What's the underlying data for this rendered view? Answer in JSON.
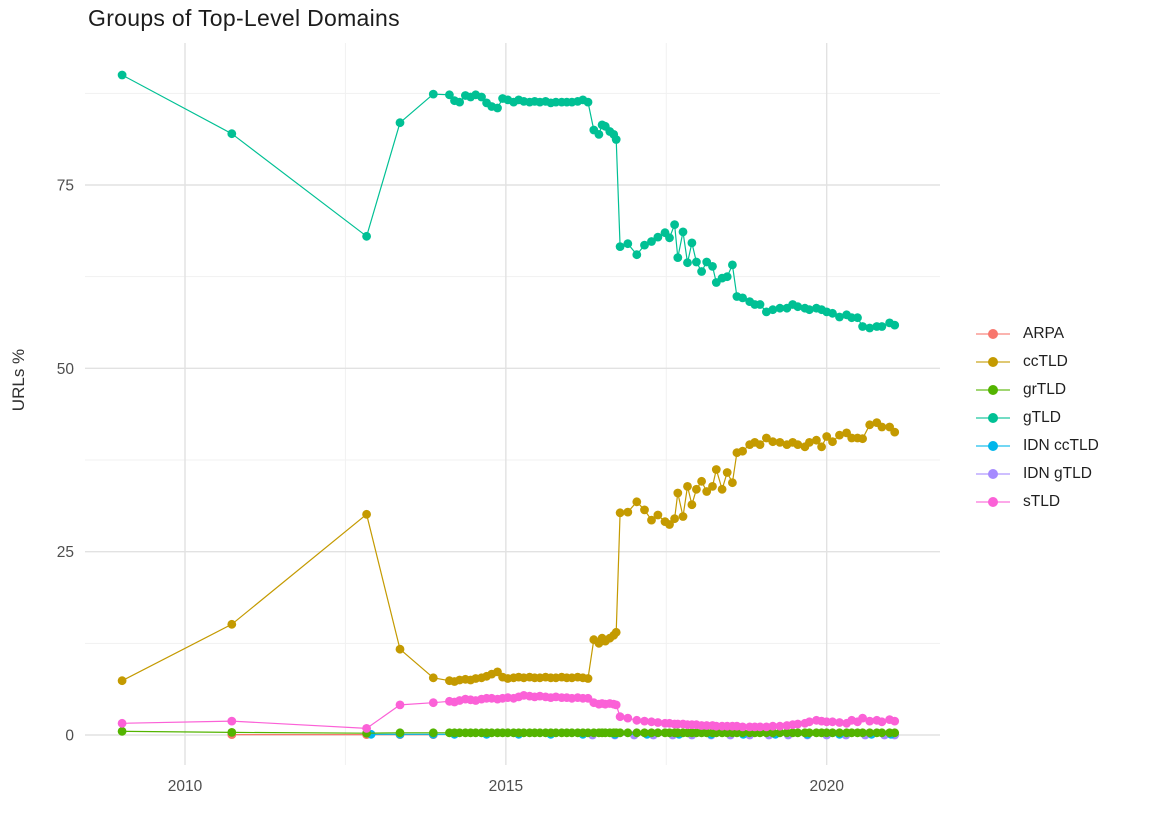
{
  "title": "Groups of Top-Level Domains",
  "axes": {
    "y_title": "URLs %",
    "x_ticks": [
      2010,
      2015,
      2020
    ],
    "y_ticks": [
      0,
      25,
      50,
      75
    ],
    "x_minor": [
      2012.5,
      2017.5
    ],
    "y_minor": [
      12.5,
      37.5,
      62.5,
      87.5
    ]
  },
  "chart_data": {
    "type": "scatter",
    "title": "Groups of Top-Level Domains",
    "xlabel": "",
    "ylabel": "URLs %",
    "xlim": [
      2008.4,
      2021.8
    ],
    "ylim": [
      -4,
      94
    ],
    "grid": "on",
    "legend_position": "right",
    "x_main": [
      2009.02,
      2010.73,
      2012.83,
      2013.35,
      2013.87,
      2014.12,
      2014.2,
      2014.28,
      2014.37,
      2014.45,
      2014.53,
      2014.62,
      2014.7,
      2014.78,
      2014.87,
      2014.95,
      2015.03,
      2015.12,
      2015.2,
      2015.28,
      2015.37,
      2015.45,
      2015.53,
      2015.62,
      2015.7,
      2015.78,
      2015.87,
      2015.95,
      2016.03,
      2016.12,
      2016.2,
      2016.28,
      2016.37,
      2016.45,
      2016.5,
      2016.55,
      2016.62,
      2016.68,
      2016.72,
      2016.78,
      2016.9,
      2017.04,
      2017.16,
      2017.27,
      2017.37,
      2017.48,
      2017.55,
      2017.63,
      2017.68,
      2017.76,
      2017.83,
      2017.9,
      2017.97,
      2018.05,
      2018.13,
      2018.22,
      2018.28,
      2018.37,
      2018.45,
      2018.53,
      2018.6,
      2018.69,
      2018.8,
      2018.88,
      2018.96,
      2019.06,
      2019.16,
      2019.27,
      2019.38,
      2019.47,
      2019.55,
      2019.66,
      2019.73,
      2019.84,
      2019.92,
      2020.0,
      2020.09,
      2020.2,
      2020.31,
      2020.39,
      2020.48,
      2020.56,
      2020.67,
      2020.78,
      2020.86,
      2020.98,
      2021.06
    ],
    "series": [
      {
        "name": "ARPA",
        "color": "#F8766D",
        "x": [
          2010.73,
          2012.83,
          2013.35,
          2013.87
        ],
        "y": [
          0.05,
          0.05,
          0.05,
          0.05
        ]
      },
      {
        "name": "ccTLD",
        "color": "#C49A00",
        "x_ref": "x_main",
        "y": [
          7.4,
          15.1,
          30.1,
          11.7,
          7.8,
          7.4,
          7.3,
          7.5,
          7.6,
          7.5,
          7.7,
          7.8,
          8.0,
          8.3,
          8.6,
          7.9,
          7.7,
          7.8,
          7.9,
          7.8,
          7.9,
          7.8,
          7.8,
          7.9,
          7.8,
          7.8,
          7.9,
          7.8,
          7.8,
          7.9,
          7.8,
          7.7,
          13.0,
          12.5,
          13.2,
          12.8,
          13.2,
          13.6,
          14.0,
          30.3,
          30.4,
          31.8,
          30.7,
          29.3,
          30.0,
          29.1,
          28.7,
          29.5,
          33.0,
          29.8,
          33.9,
          31.4,
          33.5,
          34.6,
          33.2,
          33.9,
          36.2,
          33.5,
          35.8,
          34.4,
          38.5,
          38.7,
          39.6,
          39.9,
          39.6,
          40.5,
          40.0,
          39.9,
          39.6,
          39.9,
          39.6,
          39.3,
          39.9,
          40.2,
          39.3,
          40.7,
          40.0,
          40.9,
          41.2,
          40.5,
          40.5,
          40.4,
          42.3,
          42.6,
          42.0,
          42.0,
          41.3
        ]
      },
      {
        "name": "grTLD",
        "color": "#53B400",
        "x_ref": "x_main",
        "y": [
          0.5,
          0.35,
          0.25,
          0.3,
          0.3,
          0.3,
          0.3,
          0.3,
          0.3,
          0.3,
          0.3,
          0.3,
          0.3,
          0.3,
          0.3,
          0.3,
          0.3,
          0.3,
          0.3,
          0.3,
          0.3,
          0.3,
          0.3,
          0.3,
          0.3,
          0.3,
          0.3,
          0.3,
          0.3,
          0.3,
          0.3,
          0.3,
          0.3,
          0.3,
          0.3,
          0.3,
          0.3,
          0.3,
          0.3,
          0.3,
          0.3,
          0.3,
          0.3,
          0.3,
          0.3,
          0.3,
          0.3,
          0.3,
          0.3,
          0.3,
          0.3,
          0.3,
          0.3,
          0.3,
          0.3,
          0.3,
          0.3,
          0.3,
          0.3,
          0.3,
          0.3,
          0.3,
          0.3,
          0.3,
          0.3,
          0.3,
          0.3,
          0.3,
          0.3,
          0.3,
          0.3,
          0.3,
          0.3,
          0.3,
          0.3,
          0.3,
          0.3,
          0.3,
          0.3,
          0.3,
          0.3,
          0.3,
          0.3,
          0.3,
          0.3,
          0.3,
          0.3
        ]
      },
      {
        "name": "gTLD",
        "color": "#00C094",
        "x_ref": "x_main",
        "y": [
          90.0,
          82.0,
          68.0,
          83.5,
          87.4,
          87.3,
          86.5,
          86.3,
          87.2,
          87.0,
          87.3,
          87.0,
          86.2,
          85.7,
          85.5,
          86.8,
          86.6,
          86.3,
          86.6,
          86.4,
          86.3,
          86.4,
          86.3,
          86.4,
          86.2,
          86.3,
          86.3,
          86.3,
          86.3,
          86.4,
          86.6,
          86.3,
          82.5,
          81.9,
          83.2,
          83.0,
          82.3,
          81.9,
          81.2,
          66.6,
          67.0,
          65.5,
          66.8,
          67.3,
          67.9,
          68.5,
          67.8,
          69.6,
          65.1,
          68.6,
          64.4,
          67.1,
          64.5,
          63.2,
          64.5,
          63.9,
          61.7,
          62.3,
          62.5,
          64.1,
          59.8,
          59.6,
          59.1,
          58.7,
          58.7,
          57.7,
          58.0,
          58.2,
          58.2,
          58.7,
          58.4,
          58.2,
          58.0,
          58.2,
          58.0,
          57.7,
          57.5,
          57.0,
          57.3,
          56.9,
          56.9,
          55.7,
          55.5,
          55.7,
          55.7,
          56.2,
          55.9
        ]
      },
      {
        "name": "IDN ccTLD",
        "color": "#00B6EB",
        "x": [
          2012.9,
          2013.35,
          2013.87,
          2014.2,
          2014.7,
          2015.2,
          2015.7,
          2016.2,
          2016.7,
          2017.2,
          2017.7,
          2018.2,
          2018.7,
          2019.2,
          2019.7,
          2020.2,
          2020.7,
          2021.0
        ],
        "y": [
          0.1,
          0.1,
          0.1,
          0.1,
          0.1,
          0.1,
          0.1,
          0.1,
          0.1,
          0.1,
          0.1,
          0.1,
          0.1,
          0.1,
          0.1,
          0.1,
          0.1,
          0.1
        ]
      },
      {
        "name": "IDN gTLD",
        "color": "#A58AFF",
        "x": [
          2016.35,
          2016.7,
          2017.0,
          2017.3,
          2017.6,
          2017.9,
          2018.2,
          2018.5,
          2018.8,
          2019.1,
          2019.4,
          2019.7,
          2020.0,
          2020.3,
          2020.6,
          2020.9,
          2021.06
        ],
        "y": [
          0,
          0,
          0,
          0,
          0,
          0,
          0,
          0,
          0,
          0,
          0,
          0,
          0,
          0,
          0,
          0,
          0
        ]
      },
      {
        "name": "sTLD",
        "color": "#FB61D7",
        "x_ref": "x_main",
        "y": [
          1.6,
          1.9,
          0.9,
          4.1,
          4.4,
          4.6,
          4.5,
          4.7,
          4.9,
          4.8,
          4.7,
          4.9,
          5.0,
          5.0,
          4.9,
          5.0,
          5.1,
          5.0,
          5.2,
          5.4,
          5.3,
          5.2,
          5.3,
          5.2,
          5.1,
          5.2,
          5.1,
          5.1,
          5.0,
          5.1,
          5.0,
          5.0,
          4.4,
          4.2,
          4.3,
          4.2,
          4.3,
          4.2,
          4.1,
          2.5,
          2.3,
          2.0,
          1.9,
          1.8,
          1.7,
          1.6,
          1.6,
          1.5,
          1.5,
          1.5,
          1.4,
          1.4,
          1.4,
          1.3,
          1.3,
          1.3,
          1.2,
          1.2,
          1.2,
          1.2,
          1.2,
          1.1,
          1.1,
          1.1,
          1.1,
          1.1,
          1.2,
          1.2,
          1.3,
          1.4,
          1.5,
          1.6,
          1.8,
          2.0,
          1.9,
          1.8,
          1.8,
          1.7,
          1.6,
          2.0,
          1.8,
          2.3,
          1.9,
          2.0,
          1.8,
          2.1,
          1.9
        ]
      }
    ]
  }
}
